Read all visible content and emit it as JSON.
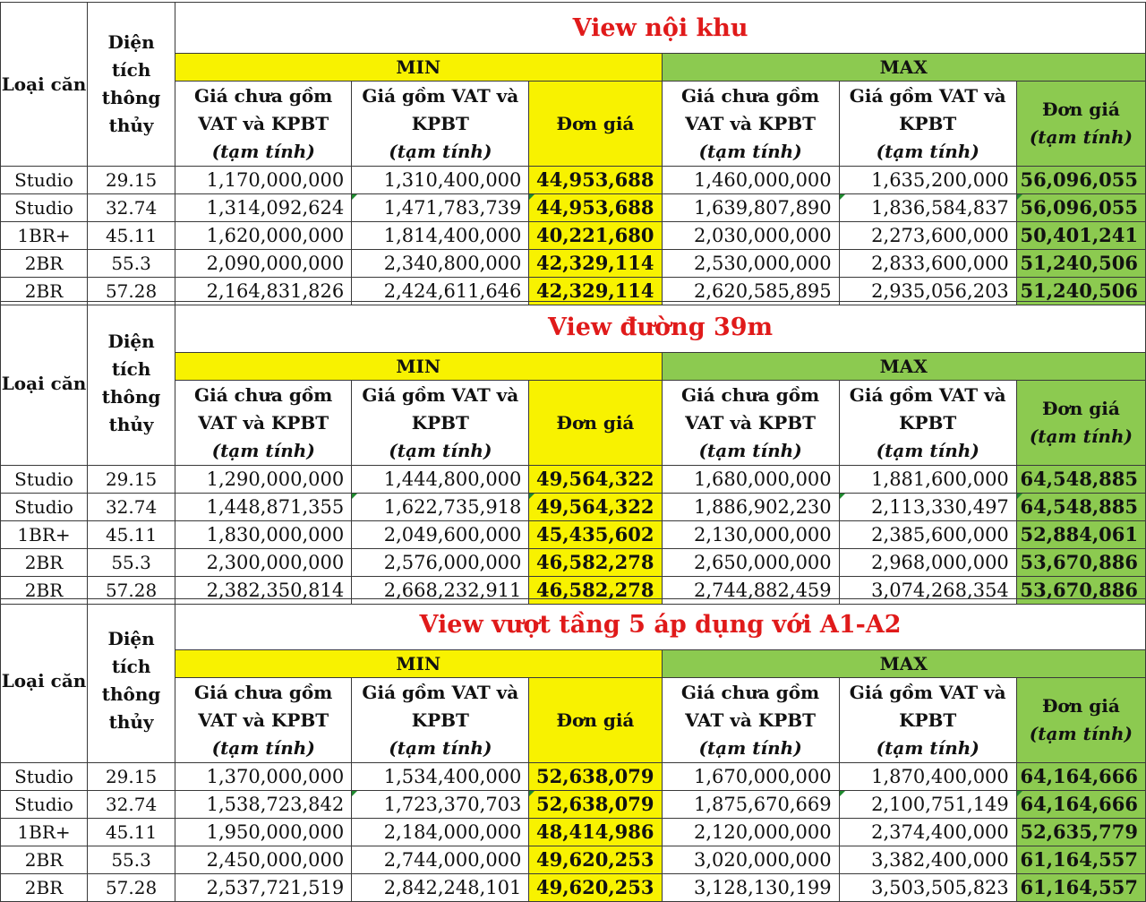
{
  "headers": {
    "loai_can": "Loại căn",
    "dien_tich": "Diện tích thông thủy",
    "min": "MIN",
    "max": "MAX",
    "gia_chua": "Giá chưa gồm VAT và KPBT",
    "gia_gom": "Giá gồm VAT và KPBT",
    "tam_tinh": "(tạm tính)",
    "don_gia": "Đơn giá"
  },
  "colors": {
    "title_red": "#e01a1a",
    "min_yellow": "#f8f200",
    "max_green": "#8cca50"
  },
  "sections": [
    {
      "title": "View nội khu",
      "rows": [
        [
          "Studio",
          "29.15",
          "1,170,000,000",
          "1,310,400,000",
          "44,953,688",
          "1,460,000,000",
          "1,635,200,000",
          "56,096,055"
        ],
        [
          "Studio",
          "32.74",
          "1,314,092,624",
          "1,471,783,739",
          "44,953,688",
          "1,639,807,890",
          "1,836,584,837",
          "56,096,055"
        ],
        [
          "1BR+",
          "45.11",
          "1,620,000,000",
          "1,814,400,000",
          "40,221,680",
          "2,030,000,000",
          "2,273,600,000",
          "50,401,241"
        ],
        [
          "2BR",
          "55.3",
          "2,090,000,000",
          "2,340,800,000",
          "42,329,114",
          "2,530,000,000",
          "2,833,600,000",
          "51,240,506"
        ],
        [
          "2BR",
          "57.28",
          "2,164,831,826",
          "2,424,611,646",
          "42,329,114",
          "2,620,585,895",
          "2,935,056,203",
          "51,240,506"
        ]
      ]
    },
    {
      "title": "View đường 39m",
      "rows": [
        [
          "Studio",
          "29.15",
          "1,290,000,000",
          "1,444,800,000",
          "49,564,322",
          "1,680,000,000",
          "1,881,600,000",
          "64,548,885"
        ],
        [
          "Studio",
          "32.74",
          "1,448,871,355",
          "1,622,735,918",
          "49,564,322",
          "1,886,902,230",
          "2,113,330,497",
          "64,548,885"
        ],
        [
          "1BR+",
          "45.11",
          "1,830,000,000",
          "2,049,600,000",
          "45,435,602",
          "2,130,000,000",
          "2,385,600,000",
          "52,884,061"
        ],
        [
          "2BR",
          "55.3",
          "2,300,000,000",
          "2,576,000,000",
          "46,582,278",
          "2,650,000,000",
          "2,968,000,000",
          "53,670,886"
        ],
        [
          "2BR",
          "57.28",
          "2,382,350,814",
          "2,668,232,911",
          "46,582,278",
          "2,744,882,459",
          "3,074,268,354",
          "53,670,886"
        ]
      ]
    },
    {
      "title": "View vượt tầng 5 áp dụng với A1-A2",
      "rows": [
        [
          "Studio",
          "29.15",
          "1,370,000,000",
          "1,534,400,000",
          "52,638,079",
          "1,670,000,000",
          "1,870,400,000",
          "64,164,666"
        ],
        [
          "Studio",
          "32.74",
          "1,538,723,842",
          "1,723,370,703",
          "52,638,079",
          "1,875,670,669",
          "2,100,751,149",
          "64,164,666"
        ],
        [
          "1BR+",
          "45.11",
          "1,950,000,000",
          "2,184,000,000",
          "48,414,986",
          "2,120,000,000",
          "2,374,400,000",
          "52,635,779"
        ],
        [
          "2BR",
          "55.3",
          "2,450,000,000",
          "2,744,000,000",
          "49,620,253",
          "3,020,000,000",
          "3,382,400,000",
          "61,164,557"
        ],
        [
          "2BR",
          "57.28",
          "2,537,721,519",
          "2,842,248,101",
          "49,620,253",
          "3,128,130,199",
          "3,503,505,823",
          "61,164,557"
        ]
      ]
    }
  ]
}
